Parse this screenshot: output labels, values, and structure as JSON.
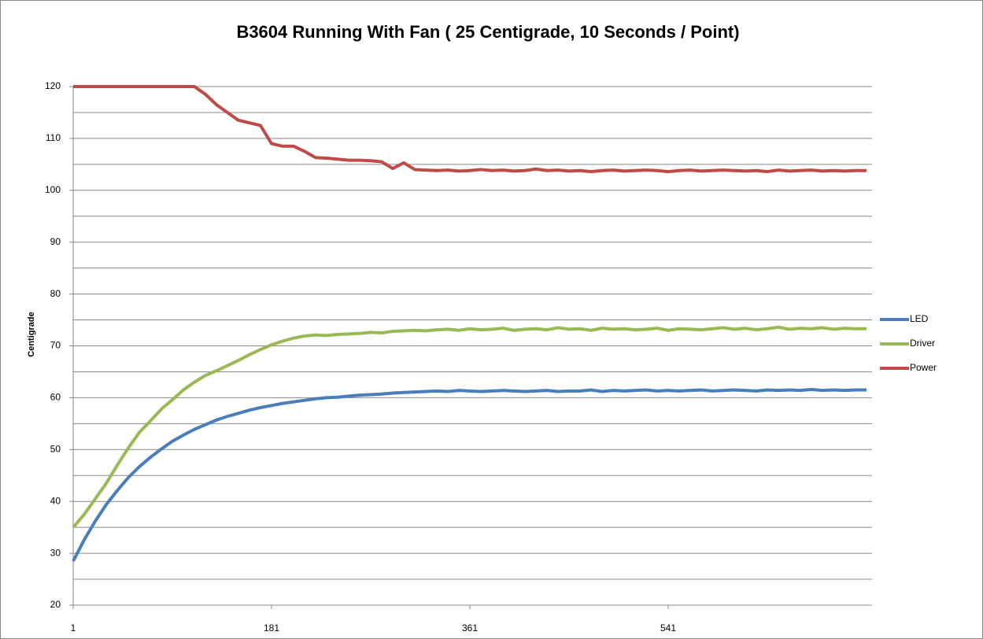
{
  "chart_data": {
    "type": "line",
    "title": "B3604 Running With Fan ( 25 Centigrade, 10 Seconds / Point)",
    "y_label": "Centigrade",
    "x": [
      1,
      11,
      21,
      31,
      41,
      51,
      61,
      71,
      81,
      91,
      101,
      111,
      121,
      131,
      141,
      151,
      161,
      171,
      181,
      191,
      201,
      211,
      221,
      231,
      241,
      251,
      261,
      271,
      281,
      291,
      301,
      311,
      321,
      331,
      341,
      351,
      361,
      371,
      381,
      391,
      401,
      411,
      421,
      431,
      441,
      451,
      461,
      471,
      481,
      491,
      501,
      511,
      521,
      531,
      541,
      551,
      561,
      571,
      581,
      591,
      601,
      611,
      621,
      631,
      641,
      651,
      661,
      671,
      681,
      691,
      701,
      711,
      721
    ],
    "xlim": [
      1,
      726
    ],
    "xticks": [
      1,
      181,
      361,
      541
    ],
    "ylim": [
      20,
      120
    ],
    "yticks": [
      20,
      30,
      40,
      50,
      60,
      70,
      80,
      90,
      100,
      110,
      120
    ],
    "grid": true,
    "legend": "right",
    "series": [
      {
        "name": "LED",
        "color": "#4a7ebb",
        "values": [
          28.5,
          32.6,
          36.2,
          39.4,
          42.1,
          44.6,
          46.7,
          48.5,
          50.1,
          51.6,
          52.8,
          53.9,
          54.8,
          55.7,
          56.4,
          57.0,
          57.6,
          58.1,
          58.5,
          58.9,
          59.2,
          59.5,
          59.8,
          60.0,
          60.1,
          60.3,
          60.5,
          60.6,
          60.7,
          60.9,
          61.0,
          61.1,
          61.2,
          61.3,
          61.2,
          61.4,
          61.3,
          61.2,
          61.3,
          61.4,
          61.3,
          61.2,
          61.3,
          61.4,
          61.2,
          61.3,
          61.3,
          61.5,
          61.2,
          61.4,
          61.3,
          61.4,
          61.5,
          61.3,
          61.4,
          61.3,
          61.4,
          61.5,
          61.3,
          61.4,
          61.5,
          61.4,
          61.3,
          61.5,
          61.4,
          61.5,
          61.4,
          61.6,
          61.4,
          61.5,
          61.4,
          61.5,
          61.5
        ]
      },
      {
        "name": "Driver",
        "color": "#98b954",
        "values": [
          35,
          37.5,
          40.5,
          43.5,
          47,
          50.3,
          53.3,
          55.5,
          57.8,
          59.6,
          61.5,
          63,
          64.3,
          65.2,
          66.2,
          67.2,
          68.3,
          69.3,
          70.2,
          70.9,
          71.5,
          71.9,
          72.1,
          72.0,
          72.2,
          72.3,
          72.4,
          72.6,
          72.5,
          72.8,
          72.9,
          73.0,
          72.9,
          73.1,
          73.2,
          73.0,
          73.3,
          73.1,
          73.2,
          73.4,
          73.0,
          73.2,
          73.3,
          73.1,
          73.5,
          73.2,
          73.3,
          73.0,
          73.4,
          73.2,
          73.3,
          73.1,
          73.2,
          73.4,
          73.0,
          73.3,
          73.2,
          73.1,
          73.3,
          73.5,
          73.2,
          73.4,
          73.1,
          73.3,
          73.6,
          73.2,
          73.4,
          73.3,
          73.5,
          73.2,
          73.4,
          73.3,
          73.3
        ]
      },
      {
        "name": "Power",
        "color": "#be4b48",
        "values": [
          120,
          120,
          120,
          120,
          120,
          120,
          120,
          120,
          120,
          120,
          120,
          120,
          118.5,
          116.5,
          115,
          113.5,
          113,
          112.5,
          109,
          108.5,
          108.5,
          107.5,
          106.3,
          106.2,
          106,
          105.8,
          105.8,
          105.7,
          105.5,
          104.2,
          105.3,
          104,
          103.9,
          103.8,
          103.9,
          103.7,
          103.8,
          104.0,
          103.8,
          103.9,
          103.7,
          103.8,
          104.1,
          103.8,
          103.9,
          103.7,
          103.8,
          103.6,
          103.8,
          103.9,
          103.7,
          103.8,
          103.9,
          103.8,
          103.6,
          103.8,
          103.9,
          103.7,
          103.8,
          103.9,
          103.8,
          103.7,
          103.8,
          103.6,
          103.9,
          103.7,
          103.8,
          103.9,
          103.7,
          103.8,
          103.7,
          103.8,
          103.8
        ]
      }
    ]
  }
}
